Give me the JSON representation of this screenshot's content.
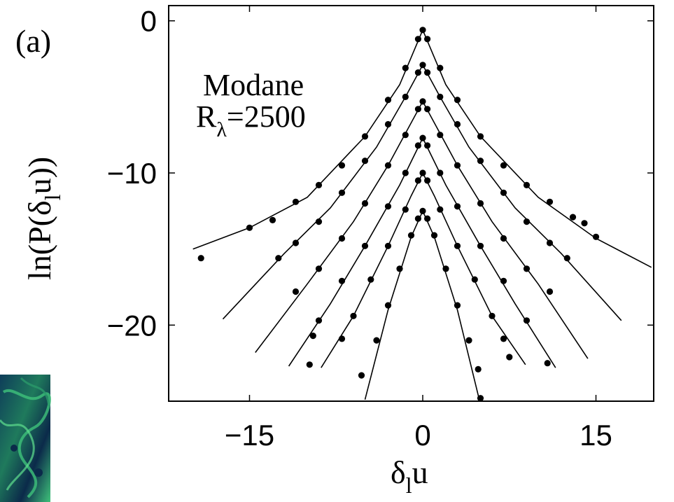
{
  "panel_label": "(a)",
  "annotation": {
    "line1": "Modane",
    "line2_main": "R",
    "line2_sub": "λ",
    "line2_rest": "=2500"
  },
  "colors": {
    "ink": "#000000",
    "background": "#ffffff",
    "inset": [
      "#0b2a4a",
      "#1f7a5c",
      "#3fc27a",
      "#0e3d5a"
    ]
  },
  "chart_data": {
    "type": "scatter",
    "title": "",
    "xlabel_main": "δ",
    "xlabel_sub": "l",
    "xlabel_rest": "u",
    "ylabel_main": "ln(P(δ",
    "ylabel_sub": "l",
    "ylabel_rest": "u))",
    "xlim": [
      -22,
      20
    ],
    "ylim": [
      -25,
      1
    ],
    "xticks": [
      -15,
      0,
      15
    ],
    "xtick_labels": [
      "−15",
      "0",
      "15"
    ],
    "yticks": [
      0,
      -10,
      -20
    ],
    "ytick_labels": [
      "0",
      "−10",
      "−20"
    ],
    "grid": false,
    "legend": "none",
    "series": [
      {
        "points": [
          [
            -0.4,
            -1.2
          ],
          [
            0,
            -0.6
          ],
          [
            0.4,
            -1.2
          ],
          [
            -1.5,
            -3.1
          ],
          [
            1.5,
            -3.1
          ],
          [
            -3,
            -5.2
          ],
          [
            3,
            -5.2
          ],
          [
            -5,
            -7.6
          ],
          [
            5,
            -7.6
          ],
          [
            -7,
            -9.5
          ],
          [
            7,
            -9.5
          ],
          [
            -9,
            -10.8
          ],
          [
            9,
            -10.8
          ],
          [
            -11,
            -11.9
          ],
          [
            11,
            -11.9
          ],
          [
            -13,
            -13.1
          ],
          [
            13,
            -12.9
          ],
          [
            -15,
            -13.6
          ],
          [
            15,
            -14.2
          ],
          [
            -19.2,
            -15.6
          ],
          [
            14,
            -13.3
          ]
        ],
        "fit": [
          [
            -19.9,
            -15
          ],
          [
            -15,
            -13.6
          ],
          [
            -10,
            -11.6
          ],
          [
            -5,
            -7.6
          ],
          [
            -2,
            -4.2
          ],
          [
            0,
            -0.6
          ],
          [
            2,
            -4.2
          ],
          [
            5,
            -7.6
          ],
          [
            10,
            -11.6
          ],
          [
            15,
            -14.3
          ],
          [
            19.8,
            -16.2
          ]
        ]
      },
      {
        "points": [
          [
            -0.4,
            -3.4
          ],
          [
            0,
            -2.9
          ],
          [
            0.4,
            -3.4
          ],
          [
            -1.5,
            -5
          ],
          [
            1.5,
            -5
          ],
          [
            -3,
            -6.8
          ],
          [
            3,
            -6.8
          ],
          [
            -5,
            -9.2
          ],
          [
            5,
            -9.2
          ],
          [
            -7,
            -11.3
          ],
          [
            7,
            -11.3
          ],
          [
            -9,
            -13.2
          ],
          [
            9,
            -13.2
          ],
          [
            -11,
            -14.6
          ],
          [
            11,
            -14.6
          ],
          [
            -12.5,
            -15.6
          ],
          [
            12.5,
            -15.6
          ]
        ],
        "fit": [
          [
            -17.3,
            -19.6
          ],
          [
            -12,
            -15.3
          ],
          [
            -8,
            -12.3
          ],
          [
            -4,
            -8.3
          ],
          [
            -1.5,
            -5
          ],
          [
            0,
            -2.9
          ],
          [
            1.5,
            -5
          ],
          [
            4,
            -8.3
          ],
          [
            8,
            -12.3
          ],
          [
            12,
            -15.3
          ],
          [
            17.2,
            -19.7
          ]
        ]
      },
      {
        "points": [
          [
            -0.4,
            -5.8
          ],
          [
            0,
            -5.3
          ],
          [
            0.4,
            -5.8
          ],
          [
            -1.5,
            -7.5
          ],
          [
            1.5,
            -7.5
          ],
          [
            -3,
            -9.5
          ],
          [
            3,
            -9.5
          ],
          [
            -5,
            -12
          ],
          [
            5,
            -12
          ],
          [
            -7,
            -14.3
          ],
          [
            7,
            -14.3
          ],
          [
            -9,
            -16.3
          ],
          [
            9,
            -16.3
          ],
          [
            -11,
            -17.8
          ],
          [
            11,
            -17.8
          ]
        ],
        "fit": [
          [
            -14.5,
            -21.8
          ],
          [
            -10,
            -17.3
          ],
          [
            -6,
            -13.2
          ],
          [
            -3,
            -9.5
          ],
          [
            0,
            -5.3
          ],
          [
            3,
            -9.5
          ],
          [
            6,
            -13.2
          ],
          [
            10,
            -17.3
          ],
          [
            14.3,
            -22.2
          ]
        ]
      },
      {
        "points": [
          [
            -0.4,
            -8.2
          ],
          [
            0,
            -7.7
          ],
          [
            0.4,
            -8.2
          ],
          [
            -1.5,
            -10
          ],
          [
            1.5,
            -10
          ],
          [
            -3,
            -12.2
          ],
          [
            3,
            -12.2
          ],
          [
            -5,
            -14.8
          ],
          [
            5,
            -14.8
          ],
          [
            -7,
            -17.1
          ],
          [
            7,
            -17.1
          ],
          [
            -9,
            -19.7
          ],
          [
            9,
            -19.7
          ],
          [
            -9.5,
            -20.7
          ],
          [
            10.8,
            -22.5
          ]
        ],
        "fit": [
          [
            -11.6,
            -22.7
          ],
          [
            -8,
            -18.6
          ],
          [
            -5,
            -14.8
          ],
          [
            -2,
            -10.8
          ],
          [
            0,
            -7.7
          ],
          [
            2,
            -10.8
          ],
          [
            5,
            -14.8
          ],
          [
            8,
            -18.6
          ],
          [
            11.5,
            -22.8
          ]
        ]
      },
      {
        "points": [
          [
            -0.4,
            -10.5
          ],
          [
            0,
            -10
          ],
          [
            0.4,
            -10.5
          ],
          [
            -1.5,
            -12.4
          ],
          [
            1.5,
            -12.4
          ],
          [
            -3,
            -14.8
          ],
          [
            3,
            -14.8
          ],
          [
            -4.5,
            -17
          ],
          [
            4.5,
            -17
          ],
          [
            -6,
            -19.4
          ],
          [
            6,
            -19.4
          ],
          [
            -7,
            -20.9
          ],
          [
            7,
            -20.9
          ],
          [
            -9.8,
            -22.6
          ],
          [
            7.5,
            -22.1
          ]
        ],
        "fit": [
          [
            -8.8,
            -22.8
          ],
          [
            -6,
            -19.4
          ],
          [
            -3,
            -14.8
          ],
          [
            -1,
            -11.5
          ],
          [
            0,
            -10
          ],
          [
            1,
            -11.5
          ],
          [
            3,
            -14.8
          ],
          [
            6,
            -19.4
          ],
          [
            8.9,
            -22.6
          ]
        ]
      },
      {
        "points": [
          [
            -0.4,
            -13
          ],
          [
            0,
            -12.5
          ],
          [
            0.4,
            -13
          ],
          [
            -1,
            -14.1
          ],
          [
            1,
            -14.1
          ],
          [
            -2,
            -16.3
          ],
          [
            2,
            -16.3
          ],
          [
            -3,
            -18.7
          ],
          [
            3,
            -18.7
          ],
          [
            -4,
            -21
          ],
          [
            4,
            -21
          ],
          [
            -5.3,
            -23.3
          ],
          [
            5,
            -24.8
          ],
          [
            4.8,
            -22.9
          ]
        ],
        "fit": [
          [
            -5,
            -24.9
          ],
          [
            -3,
            -19
          ],
          [
            -1,
            -14.2
          ],
          [
            0,
            -12.5
          ],
          [
            1,
            -14.2
          ],
          [
            3,
            -19
          ],
          [
            4.9,
            -24.9
          ]
        ]
      }
    ]
  }
}
